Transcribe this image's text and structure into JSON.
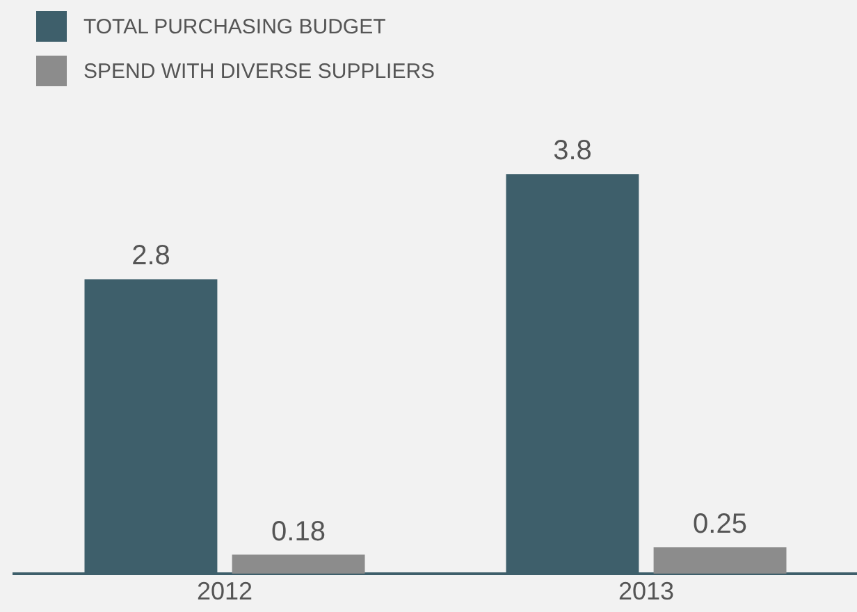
{
  "chart_data": {
    "type": "bar",
    "categories": [
      "2012",
      "2013"
    ],
    "series": [
      {
        "name": "TOTAL PURCHASING BUDGET",
        "color": "#3e5f6b",
        "values": [
          2.8,
          3.8
        ]
      },
      {
        "name": "SPEND WITH DIVERSE SUPPLIERS",
        "color": "#8c8c8c",
        "values": [
          0.18,
          0.25
        ]
      }
    ],
    "data_labels": true,
    "legend": "top left",
    "grid": false,
    "tick_labels": "x"
  }
}
